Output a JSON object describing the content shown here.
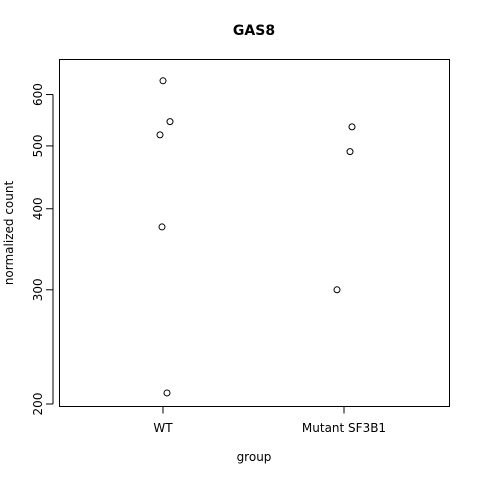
{
  "chart_data": {
    "type": "scatter",
    "title": "GAS8",
    "xlabel": "group",
    "ylabel": "normalized count",
    "categories": [
      "WT",
      "Mutant SF3B1"
    ],
    "y_scale": "log",
    "ylim": [
      200,
      650
    ],
    "y_ticks": [
      200,
      300,
      400,
      500,
      600
    ],
    "y_tick_labels": [
      "200",
      "300",
      "400",
      "500",
      "600"
    ],
    "grid": false,
    "legend": "none",
    "points": [
      {
        "group": "WT",
        "y": 208
      },
      {
        "group": "WT",
        "y": 375
      },
      {
        "group": "WT",
        "y": 520
      },
      {
        "group": "WT",
        "y": 545
      },
      {
        "group": "WT",
        "y": 630
      },
      {
        "group": "Mutant SF3B1",
        "y": 300
      },
      {
        "group": "Mutant SF3B1",
        "y": 490
      },
      {
        "group": "Mutant SF3B1",
        "y": 535
      }
    ]
  }
}
